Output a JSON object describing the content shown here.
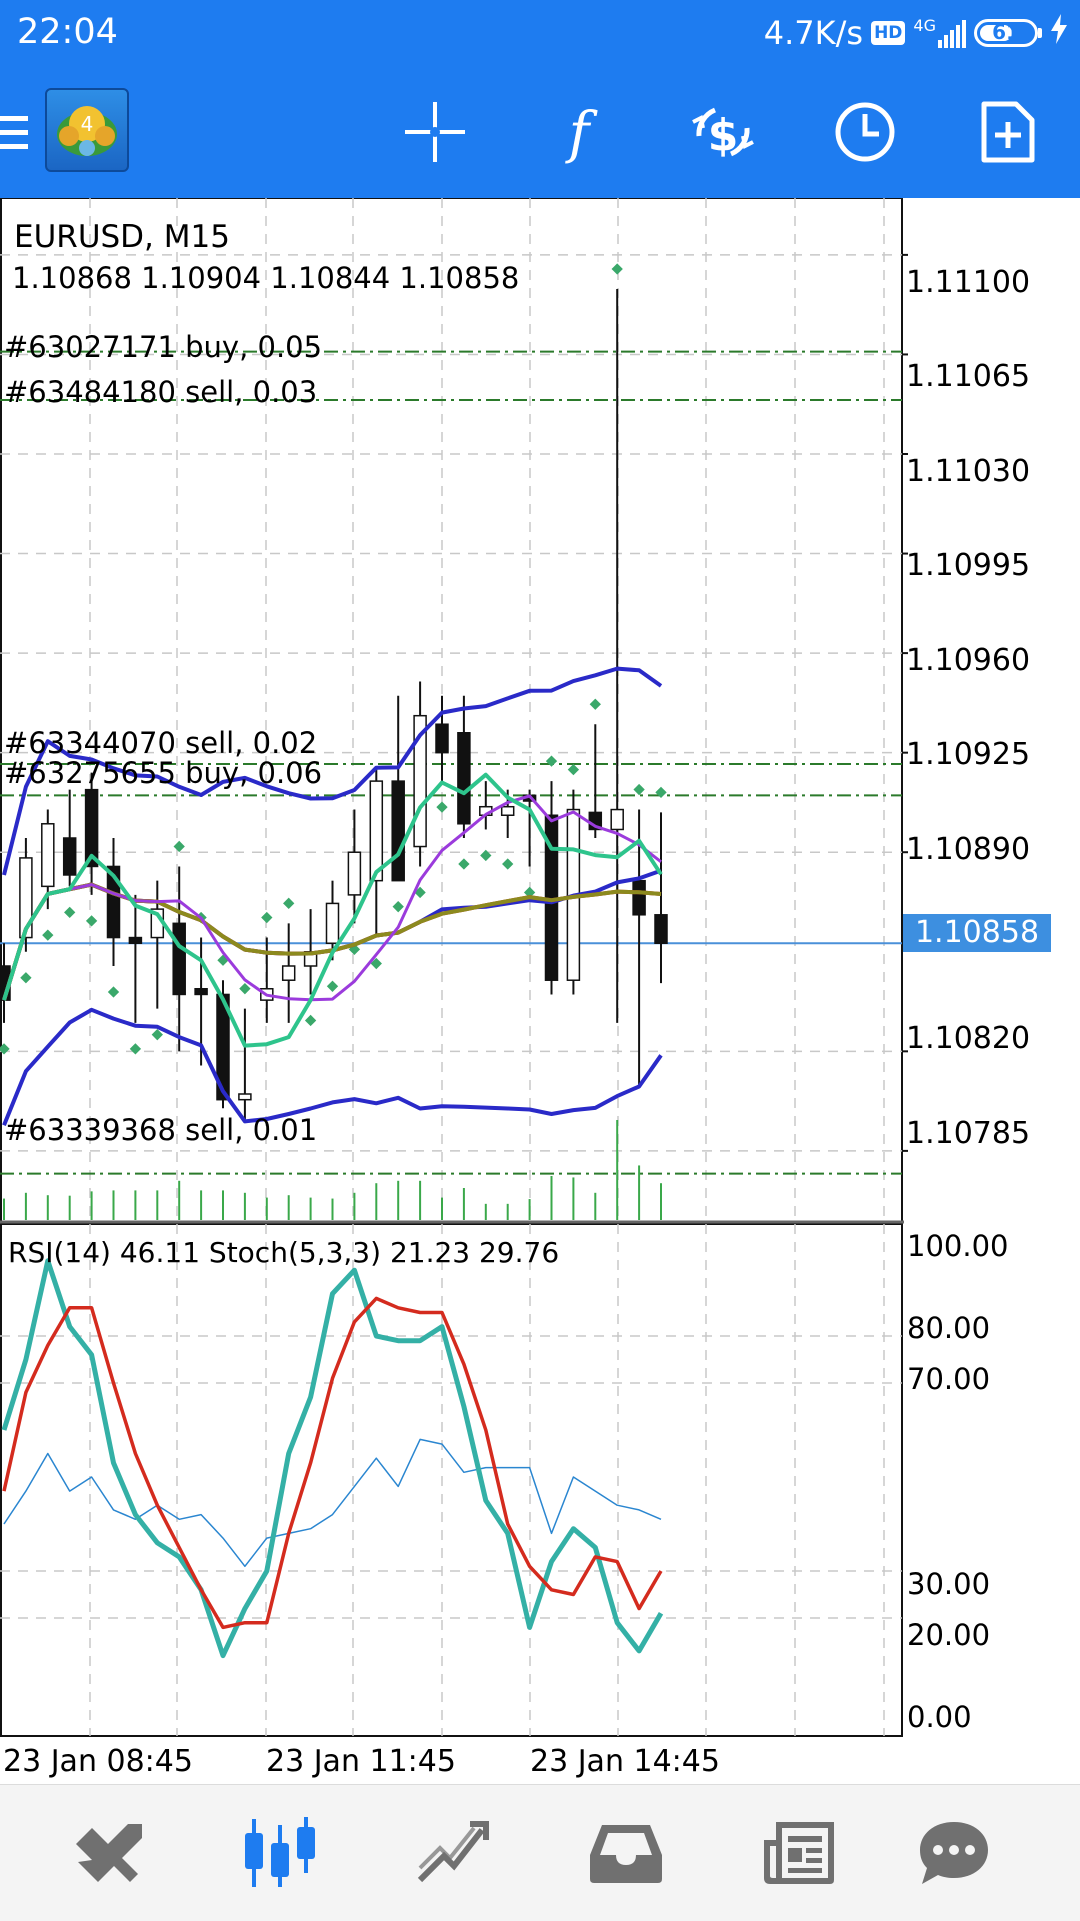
{
  "status_bar": {
    "time": "22:04",
    "speed": "4.7K/s",
    "hd": "HD",
    "network": "4G",
    "battery": "61"
  },
  "toolbar": {
    "app_icon_label": "4",
    "icons": [
      "menu-icon",
      "crosshair-icon",
      "indicators-icon",
      "trade-icon",
      "timeframe-icon",
      "new-order-icon"
    ]
  },
  "chart": {
    "symbol_line": "EURUSD, M15",
    "ohlc": "1.10868 1.10904 1.10844 1.10858",
    "current_price": "1.10858",
    "price_axis": [
      "1.11100",
      "1.11065",
      "1.11030",
      "1.10995",
      "1.10960",
      "1.10925",
      "1.10890",
      "1.10820",
      "1.10785"
    ],
    "order_lines": [
      {
        "label": "#63027171 buy, 0.05",
        "price": 1.11066
      },
      {
        "label": "#63484180 sell, 0.03",
        "price": 1.11049
      },
      {
        "label": "#63344070 sell, 0.02",
        "price": 1.10921
      },
      {
        "label": "#63275655 buy, 0.06",
        "price": 1.1091
      },
      {
        "label": "#63339368 sell, 0.01",
        "price": 1.10777
      }
    ],
    "colors": {
      "bollinger": "#2a2ac8",
      "ma_fast": "#2ec48c",
      "ma_purple": "#9b3bdc",
      "ma_red": "#d42b1e",
      "ma_olive": "#8c8a1e",
      "parabolic_sar": "#3aa86a",
      "order_line": "#2b7a2b",
      "price_line": "#4a90d9"
    }
  },
  "indicator": {
    "label": "RSI(14) 46.11 Stoch(5,3,3) 21.23 29.76",
    "levels": [
      "100.00",
      "80.00",
      "70.00",
      "30.00",
      "20.00",
      "0.00"
    ],
    "colors": {
      "rsi": "#2a86d0",
      "stoch_main": "#34b0a6",
      "stoch_signal": "#d42b1e"
    }
  },
  "time_axis": [
    "23 Jan 08:45",
    "23 Jan 11:45",
    "23 Jan 14:45"
  ],
  "chart_data": {
    "type": "candlestick",
    "title": "EURUSD, M15",
    "ylim": [
      1.1076,
      1.1112
    ],
    "candles": [
      {
        "o": 1.1085,
        "h": 1.10858,
        "l": 1.1083,
        "c": 1.10838
      },
      {
        "o": 1.1086,
        "h": 1.10895,
        "l": 1.10855,
        "c": 1.10888
      },
      {
        "o": 1.10878,
        "h": 1.10905,
        "l": 1.1087,
        "c": 1.109
      },
      {
        "o": 1.10895,
        "h": 1.10912,
        "l": 1.10878,
        "c": 1.10882
      },
      {
        "o": 1.10912,
        "h": 1.10918,
        "l": 1.10875,
        "c": 1.10885
      },
      {
        "o": 1.10885,
        "h": 1.10895,
        "l": 1.1085,
        "c": 1.1086
      },
      {
        "o": 1.1086,
        "h": 1.10875,
        "l": 1.1083,
        "c": 1.10858
      },
      {
        "o": 1.1086,
        "h": 1.1088,
        "l": 1.10835,
        "c": 1.1087
      },
      {
        "o": 1.10865,
        "h": 1.10885,
        "l": 1.1082,
        "c": 1.1084
      },
      {
        "o": 1.10842,
        "h": 1.1086,
        "l": 1.10815,
        "c": 1.1084
      },
      {
        "o": 1.1084,
        "h": 1.10845,
        "l": 1.108,
        "c": 1.10803
      },
      {
        "o": 1.10803,
        "h": 1.10835,
        "l": 1.10795,
        "c": 1.10805
      },
      {
        "o": 1.10838,
        "h": 1.1086,
        "l": 1.1083,
        "c": 1.10842
      },
      {
        "o": 1.10845,
        "h": 1.10865,
        "l": 1.1083,
        "c": 1.1085
      },
      {
        "o": 1.1085,
        "h": 1.1087,
        "l": 1.1084,
        "c": 1.10855
      },
      {
        "o": 1.10858,
        "h": 1.1088,
        "l": 1.10852,
        "c": 1.10872
      },
      {
        "o": 1.10875,
        "h": 1.10905,
        "l": 1.10865,
        "c": 1.1089
      },
      {
        "o": 1.1088,
        "h": 1.1092,
        "l": 1.1086,
        "c": 1.10915
      },
      {
        "o": 1.10915,
        "h": 1.10945,
        "l": 1.1088,
        "c": 1.1088
      },
      {
        "o": 1.10892,
        "h": 1.1095,
        "l": 1.10885,
        "c": 1.10938
      },
      {
        "o": 1.10935,
        "h": 1.10945,
        "l": 1.10915,
        "c": 1.10925
      },
      {
        "o": 1.10932,
        "h": 1.10945,
        "l": 1.10895,
        "c": 1.109
      },
      {
        "o": 1.10903,
        "h": 1.10915,
        "l": 1.10898,
        "c": 1.10906
      },
      {
        "o": 1.10903,
        "h": 1.10912,
        "l": 1.10895,
        "c": 1.10906
      },
      {
        "o": 1.1091,
        "h": 1.10912,
        "l": 1.10885,
        "c": 1.10908
      },
      {
        "o": 1.10903,
        "h": 1.10915,
        "l": 1.1084,
        "c": 1.10845
      },
      {
        "o": 1.10845,
        "h": 1.10912,
        "l": 1.1084,
        "c": 1.10905
      },
      {
        "o": 1.10904,
        "h": 1.10935,
        "l": 1.10895,
        "c": 1.10898
      },
      {
        "o": 1.10898,
        "h": 1.11088,
        "l": 1.1083,
        "c": 1.10905
      },
      {
        "o": 1.1088,
        "h": 1.10905,
        "l": 1.10808,
        "c": 1.10868
      },
      {
        "o": 1.10868,
        "h": 1.10904,
        "l": 1.10844,
        "c": 1.10858
      }
    ],
    "series": [
      {
        "name": "RSI(14)",
        "values": [
          40,
          47,
          55,
          47,
          50,
          43,
          41,
          44,
          41,
          42,
          37,
          31,
          37,
          38,
          39,
          42,
          48,
          54,
          48,
          58,
          57,
          51,
          52,
          52,
          52,
          38,
          50,
          47,
          44,
          43,
          41
        ]
      },
      {
        "name": "Stoch main",
        "values": [
          60,
          75,
          96,
          82,
          76,
          53,
          42,
          36,
          33,
          26,
          12,
          22,
          30,
          55,
          67,
          89,
          94,
          80,
          79,
          79,
          82,
          65,
          45,
          38,
          18,
          32,
          39,
          35,
          19,
          13,
          21
        ]
      },
      {
        "name": "Stoch signal",
        "values": [
          47,
          68,
          78,
          86,
          86,
          70,
          55,
          44,
          35,
          26,
          18,
          19,
          19,
          38,
          53,
          71,
          83,
          88,
          86,
          85,
          85,
          74,
          60,
          40,
          31,
          26,
          25,
          33,
          32,
          22,
          30
        ]
      }
    ]
  },
  "bottom_nav": {
    "items": [
      {
        "name": "quotes-icon",
        "active": false
      },
      {
        "name": "chart-icon",
        "active": true
      },
      {
        "name": "trade-tab-icon",
        "active": false
      },
      {
        "name": "history-icon",
        "active": false
      },
      {
        "name": "news-icon",
        "active": false
      },
      {
        "name": "messages-icon",
        "active": false
      }
    ],
    "active_color": "#1e7cf0",
    "inactive_color": "#707070"
  }
}
